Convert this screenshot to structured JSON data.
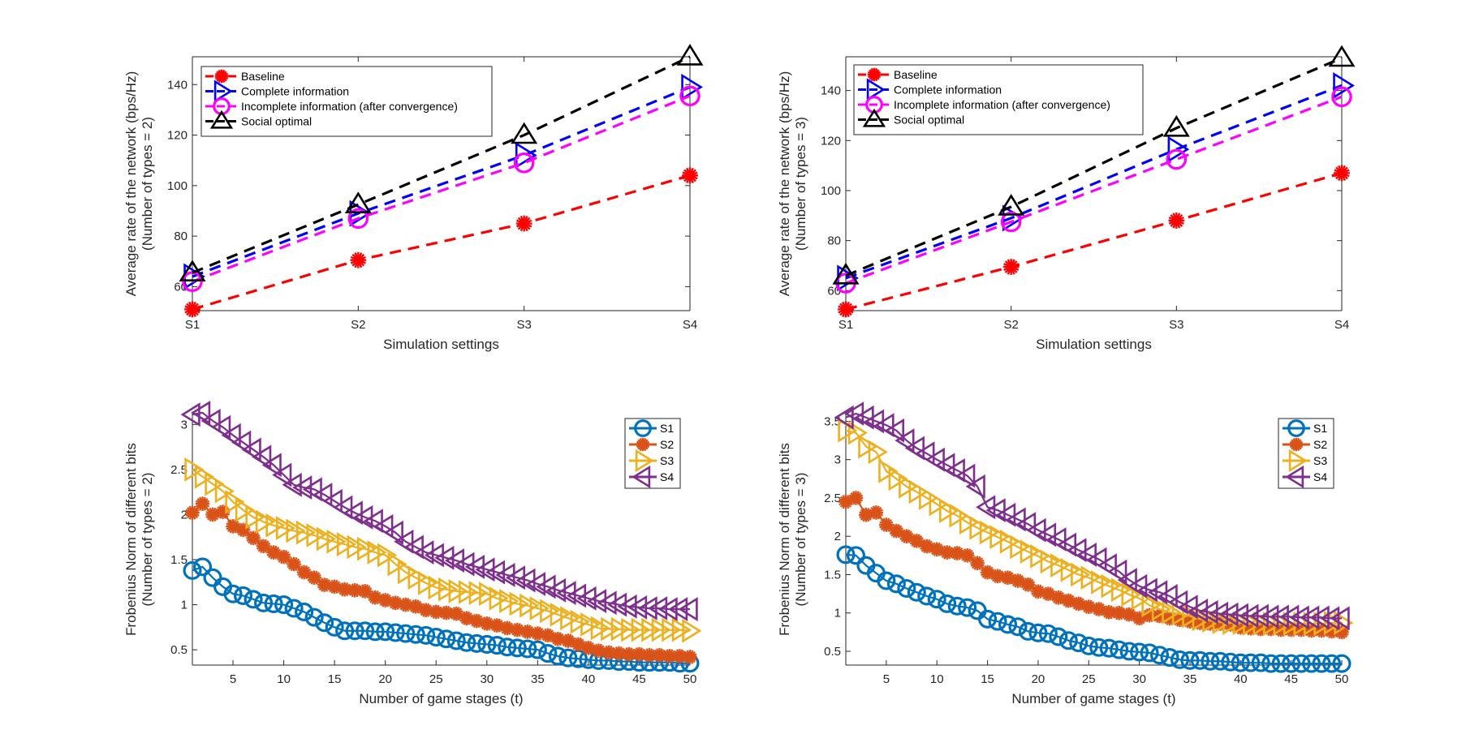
{
  "chart_data": [
    {
      "id": "rate-types-2",
      "type": "line",
      "title": "",
      "xlabel": "Simulation settings",
      "ylabel": [
        "Average rate of the network (bps/Hz)",
        "(Number of types = 2)"
      ],
      "categories": [
        "S1",
        "S2",
        "S3",
        "S4"
      ],
      "ylim": [
        50.5,
        151
      ],
      "yticks": [
        60,
        80,
        100,
        120,
        140
      ],
      "grid": false,
      "legend_position": "top-left",
      "series": [
        {
          "name": "Baseline",
          "color": "#ff0000",
          "marker": "asterisk",
          "linestyle": "dashed",
          "values": [
            51,
            70.5,
            85,
            104
          ]
        },
        {
          "name": "Complete information",
          "color": "#0000ff",
          "marker": "triangle-right",
          "linestyle": "dashed",
          "values": [
            64,
            89,
            112,
            139
          ]
        },
        {
          "name": "Incomplete information (after convergence)",
          "color": "#ff00ff",
          "marker": "circle",
          "linestyle": "dashed",
          "values": [
            62,
            87,
            109,
            135.5
          ]
        },
        {
          "name": "Social optimal",
          "color": "#000000",
          "marker": "triangle-up",
          "linestyle": "dashed",
          "values": [
            65.5,
            92.5,
            120,
            151
          ]
        }
      ]
    },
    {
      "id": "rate-types-3",
      "type": "line",
      "title": "",
      "xlabel": "Simulation settings",
      "ylabel": [
        "Average rate of the network (bps/Hz)",
        "(Number of types = 3)"
      ],
      "categories": [
        "S1",
        "S2",
        "S3",
        "S4"
      ],
      "ylim": [
        52,
        153.5
      ],
      "yticks": [
        60,
        80,
        100,
        120,
        140
      ],
      "grid": false,
      "legend_position": "top-left",
      "series": [
        {
          "name": "Baseline",
          "color": "#ff0000",
          "marker": "asterisk",
          "linestyle": "dashed",
          "values": [
            52.5,
            69.5,
            88,
            107
          ]
        },
        {
          "name": "Complete information",
          "color": "#0000ff",
          "marker": "triangle-right",
          "linestyle": "dashed",
          "values": [
            65,
            89,
            116.5,
            142
          ]
        },
        {
          "name": "Incomplete information (after convergence)",
          "color": "#ff00ff",
          "marker": "circle",
          "linestyle": "dashed",
          "values": [
            63,
            87.5,
            112.5,
            137.5
          ]
        },
        {
          "name": "Social optimal",
          "color": "#000000",
          "marker": "triangle-up",
          "linestyle": "dashed",
          "values": [
            66,
            93.5,
            125,
            153
          ]
        }
      ]
    },
    {
      "id": "frobenius-types-2",
      "type": "line",
      "title": "",
      "xlabel": "Number of game stages (t)",
      "ylabel": [
        "Frobenius Norm of different bits",
        "(Number of types = 2)"
      ],
      "xlim": [
        1,
        50
      ],
      "xticks": [
        5,
        10,
        15,
        20,
        25,
        30,
        35,
        40,
        45,
        50
      ],
      "ylim": [
        0.33,
        3.12
      ],
      "yticks": [
        0.5,
        1,
        1.5,
        2,
        2.5,
        3
      ],
      "grid": false,
      "legend_position": "top-right",
      "series": [
        {
          "name": "S1",
          "color": "#0072bd",
          "marker": "circle",
          "linestyle": "solid",
          "values": [
            1.38,
            1.42,
            1.3,
            1.2,
            1.12,
            1.1,
            1.06,
            1.02,
            1.01,
            1.0,
            0.96,
            0.92,
            0.86,
            0.8,
            0.75,
            0.71,
            0.71,
            0.71,
            0.7,
            0.7,
            0.69,
            0.68,
            0.67,
            0.66,
            0.64,
            0.62,
            0.6,
            0.58,
            0.57,
            0.56,
            0.55,
            0.53,
            0.52,
            0.51,
            0.5,
            0.46,
            0.43,
            0.41,
            0.4,
            0.39,
            0.38,
            0.38,
            0.37,
            0.37,
            0.36,
            0.36,
            0.36,
            0.36,
            0.35,
            0.35
          ]
        },
        {
          "name": "S2",
          "color": "#d95319",
          "marker": "asterisk",
          "linestyle": "solid",
          "values": [
            2.02,
            2.12,
            2.0,
            2.03,
            1.87,
            1.83,
            1.74,
            1.65,
            1.58,
            1.53,
            1.45,
            1.36,
            1.3,
            1.22,
            1.2,
            1.17,
            1.16,
            1.15,
            1.08,
            1.05,
            1.02,
            1.0,
            0.98,
            0.94,
            0.92,
            0.91,
            0.9,
            0.85,
            0.82,
            0.79,
            0.77,
            0.74,
            0.72,
            0.7,
            0.68,
            0.66,
            0.62,
            0.6,
            0.56,
            0.52,
            0.49,
            0.47,
            0.46,
            0.45,
            0.45,
            0.44,
            0.44,
            0.43,
            0.43,
            0.42
          ]
        },
        {
          "name": "S3",
          "color": "#edb120",
          "marker": "triangle-right",
          "linestyle": "solid",
          "values": [
            2.5,
            2.42,
            2.34,
            2.26,
            2.14,
            2.05,
            1.97,
            1.92,
            1.88,
            1.85,
            1.82,
            1.8,
            1.77,
            1.73,
            1.7,
            1.67,
            1.64,
            1.62,
            1.58,
            1.55,
            1.45,
            1.36,
            1.3,
            1.24,
            1.19,
            1.17,
            1.15,
            1.14,
            1.13,
            1.12,
            1.07,
            1.04,
            1.01,
            0.99,
            0.96,
            0.93,
            0.89,
            0.85,
            0.81,
            0.78,
            0.74,
            0.73,
            0.73,
            0.72,
            0.72,
            0.72,
            0.72,
            0.72,
            0.72,
            0.71
          ]
        },
        {
          "name": "S4",
          "color": "#7e2f8e",
          "marker": "triangle-left",
          "linestyle": "solid",
          "values": [
            3.11,
            3.13,
            3.04,
            2.97,
            2.88,
            2.8,
            2.72,
            2.64,
            2.55,
            2.44,
            2.33,
            2.3,
            2.28,
            2.22,
            2.15,
            2.08,
            2.02,
            1.97,
            1.93,
            1.87,
            1.8,
            1.7,
            1.64,
            1.58,
            1.55,
            1.52,
            1.49,
            1.45,
            1.42,
            1.39,
            1.36,
            1.33,
            1.3,
            1.27,
            1.23,
            1.2,
            1.16,
            1.13,
            1.1,
            1.07,
            1.04,
            1.02,
            1.0,
            0.98,
            0.97,
            0.96,
            0.96,
            0.95,
            0.95,
            0.95
          ]
        }
      ]
    },
    {
      "id": "frobenius-types-3",
      "type": "line",
      "title": "",
      "xlabel": "Number of game stages (t)",
      "ylabel": [
        "Frobenius Norm of different bits",
        "(Number of types = 3)"
      ],
      "xlim": [
        1,
        50
      ],
      "xticks": [
        5,
        10,
        15,
        20,
        25,
        30,
        35,
        40,
        45,
        50
      ],
      "ylim": [
        0.32,
        3.6
      ],
      "yticks": [
        0.5,
        1,
        1.5,
        2,
        2.5,
        3,
        3.5
      ],
      "grid": false,
      "legend_position": "top-right",
      "series": [
        {
          "name": "S1",
          "color": "#0072bd",
          "marker": "circle",
          "linestyle": "solid",
          "values": [
            1.76,
            1.75,
            1.62,
            1.52,
            1.42,
            1.38,
            1.32,
            1.27,
            1.22,
            1.18,
            1.12,
            1.09,
            1.07,
            1.03,
            0.92,
            0.89,
            0.85,
            0.82,
            0.76,
            0.74,
            0.73,
            0.69,
            0.64,
            0.61,
            0.57,
            0.55,
            0.54,
            0.52,
            0.5,
            0.49,
            0.48,
            0.45,
            0.42,
            0.39,
            0.38,
            0.38,
            0.37,
            0.37,
            0.36,
            0.35,
            0.35,
            0.35,
            0.34,
            0.34,
            0.34,
            0.34,
            0.34,
            0.34,
            0.34,
            0.34
          ]
        },
        {
          "name": "S2",
          "color": "#d95319",
          "marker": "asterisk",
          "linestyle": "solid",
          "values": [
            2.45,
            2.5,
            2.28,
            2.31,
            2.15,
            2.07,
            2.0,
            1.94,
            1.87,
            1.83,
            1.79,
            1.78,
            1.75,
            1.65,
            1.53,
            1.48,
            1.46,
            1.42,
            1.37,
            1.28,
            1.25,
            1.2,
            1.16,
            1.12,
            1.08,
            1.05,
            1.01,
            1.0,
            0.98,
            0.93,
            0.97,
            0.96,
            0.93,
            0.91,
            0.89,
            0.87,
            0.86,
            0.86,
            0.85,
            0.81,
            0.8,
            0.79,
            0.79,
            0.78,
            0.78,
            0.78,
            0.77,
            0.77,
            0.76,
            0.75
          ]
        },
        {
          "name": "S3",
          "color": "#edb120",
          "marker": "triangle-right",
          "linestyle": "solid",
          "values": [
            3.38,
            3.35,
            3.17,
            3.1,
            2.85,
            2.75,
            2.65,
            2.58,
            2.5,
            2.42,
            2.33,
            2.27,
            2.18,
            2.11,
            2.05,
            1.99,
            1.93,
            1.86,
            1.8,
            1.74,
            1.67,
            1.62,
            1.56,
            1.5,
            1.46,
            1.4,
            1.35,
            1.3,
            1.24,
            1.19,
            1.1,
            1.05,
            1.01,
            0.99,
            0.96,
            0.92,
            0.9,
            0.88,
            0.87,
            0.87,
            0.86,
            0.86,
            0.86,
            0.86,
            0.86,
            0.86,
            0.86,
            0.86,
            0.87,
            0.87
          ]
        },
        {
          "name": "S4",
          "color": "#7e2f8e",
          "marker": "triangle-left",
          "linestyle": "solid",
          "values": [
            3.55,
            3.6,
            3.55,
            3.5,
            3.45,
            3.38,
            3.25,
            3.15,
            3.08,
            3.0,
            2.93,
            2.86,
            2.79,
            2.65,
            2.38,
            2.34,
            2.28,
            2.22,
            2.16,
            2.08,
            2.02,
            1.96,
            1.89,
            1.82,
            1.76,
            1.7,
            1.62,
            1.54,
            1.43,
            1.35,
            1.3,
            1.27,
            1.22,
            1.14,
            1.08,
            1.03,
            1.01,
            0.99,
            0.98,
            0.97,
            0.96,
            0.96,
            0.95,
            0.95,
            0.95,
            0.94,
            0.94,
            0.94,
            0.93,
            0.93
          ]
        }
      ]
    }
  ]
}
